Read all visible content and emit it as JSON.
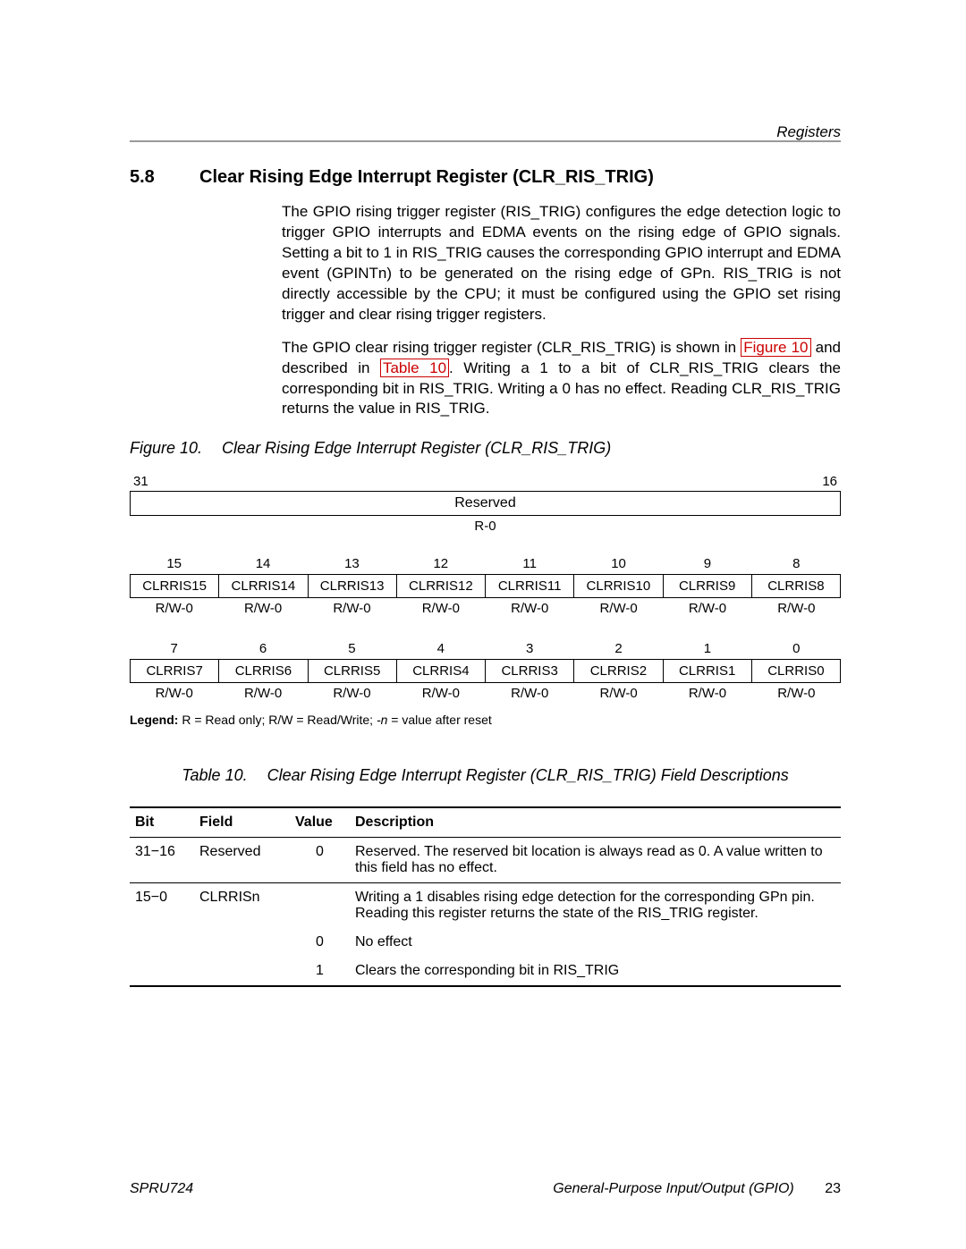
{
  "header": {
    "right": "Registers"
  },
  "section": {
    "number": "5.8",
    "title": "Clear Rising Edge Interrupt Register (CLR_RIS_TRIG)"
  },
  "paragraphs": {
    "p1": "The GPIO rising trigger register (RIS_TRIG) configures the edge detection logic to trigger GPIO interrupts and EDMA events on the rising edge of GPIO signals. Setting a bit to 1 in RIS_TRIG causes the corresponding GPIO interrupt and EDMA event (GPINTn) to be generated on the rising edge of GPn. RIS_TRIG is not directly accessible by the CPU; it must be configured using the GPIO set rising trigger and clear rising trigger registers.",
    "p2a": "The GPIO clear rising trigger register (CLR_RIS_TRIG) is shown in ",
    "p2_link1": "Figure 10",
    "p2b": " and described in ",
    "p2_link2": "Table 10",
    "p2c": ". Writing a 1 to a bit of CLR_RIS_TRIG clears the corresponding bit in RIS_TRIG. Writing a 0 has no effect. Reading CLR_RIS_TRIG returns the value in RIS_TRIG."
  },
  "figure": {
    "label": "Figure 10.",
    "caption": "Clear Rising Edge Interrupt Register (CLR_RIS_TRIG)"
  },
  "register": {
    "hi_left": "31",
    "hi_right": "16",
    "reserved_label": "Reserved",
    "reserved_rw": "R-0",
    "row1_bits": [
      "15",
      "14",
      "13",
      "12",
      "11",
      "10",
      "9",
      "8"
    ],
    "row1_fields": [
      "CLRRIS15",
      "CLRRIS14",
      "CLRRIS13",
      "CLRRIS12",
      "CLRRIS11",
      "CLRRIS10",
      "CLRRIS9",
      "CLRRIS8"
    ],
    "row1_rw": [
      "R/W-0",
      "R/W-0",
      "R/W-0",
      "R/W-0",
      "R/W-0",
      "R/W-0",
      "R/W-0",
      "R/W-0"
    ],
    "row2_bits": [
      "7",
      "6",
      "5",
      "4",
      "3",
      "2",
      "1",
      "0"
    ],
    "row2_fields": [
      "CLRRIS7",
      "CLRRIS6",
      "CLRRIS5",
      "CLRRIS4",
      "CLRRIS3",
      "CLRRIS2",
      "CLRRIS1",
      "CLRRIS0"
    ],
    "row2_rw": [
      "R/W-0",
      "R/W-0",
      "R/W-0",
      "R/W-0",
      "R/W-0",
      "R/W-0",
      "R/W-0",
      "R/W-0"
    ]
  },
  "legend": {
    "label": "Legend:",
    "text_a": " R = Read only; R/W = Read/Write; ",
    "n": "-n",
    "text_b": " = value after reset"
  },
  "table": {
    "label": "Table 10.",
    "caption": "Clear Rising Edge Interrupt Register (CLR_RIS_TRIG) Field Descriptions",
    "headers": {
      "bit": "Bit",
      "field": "Field",
      "value": "Value",
      "desc": "Description"
    },
    "rows": [
      {
        "bit": "31−16",
        "field": "Reserved",
        "value": "0",
        "desc": "Reserved. The reserved bit location is always read as 0. A value written to this field has no effect."
      },
      {
        "bit": "15−0",
        "field": "CLRRISn",
        "value": "",
        "desc": "Writing a 1 disables rising edge detection for the corresponding GPn pin. Reading this register returns the state of the RIS_TRIG register."
      },
      {
        "bit": "",
        "field": "",
        "value": "0",
        "desc": "No effect"
      },
      {
        "bit": "",
        "field": "",
        "value": "1",
        "desc": "Clears the corresponding bit in RIS_TRIG"
      }
    ]
  },
  "footer": {
    "left": "SPRU724",
    "right": "General-Purpose Input/Output (GPIO)",
    "page": "23"
  }
}
